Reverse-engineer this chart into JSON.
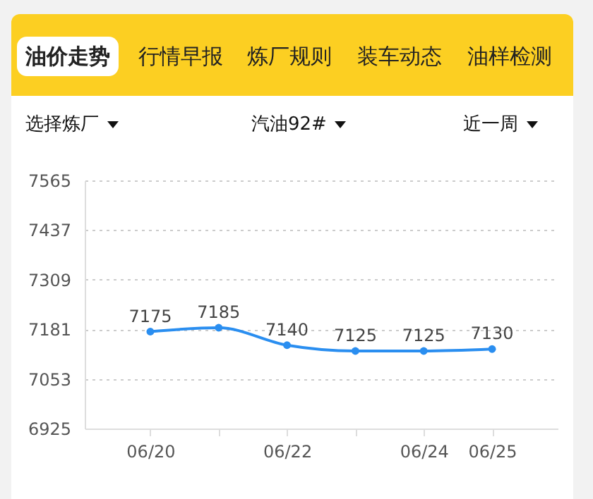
{
  "chart_data": {
    "type": "line",
    "annotations": [
      "油价走势",
      "行情早报",
      "炼厂规则",
      "装车动态",
      "油样检测",
      "选择炼厂",
      "汽油92#",
      "近一周"
    ],
    "categories": [
      "06/20",
      null,
      "06/22",
      null,
      "06/24",
      "06/25"
    ],
    "series": [
      {
        "color": "#2a8ef0",
        "values": [
          7175,
          7185,
          7140,
          7125,
          7125,
          7130
        ]
      }
    ],
    "ylim": [
      6925,
      7565
    ],
    "yticks": [
      6925,
      7053,
      7181,
      7309,
      7437,
      7565
    ],
    "grid": "y",
    "marker": "circle",
    "line_style": "solid",
    "data_labels": true
  }
}
